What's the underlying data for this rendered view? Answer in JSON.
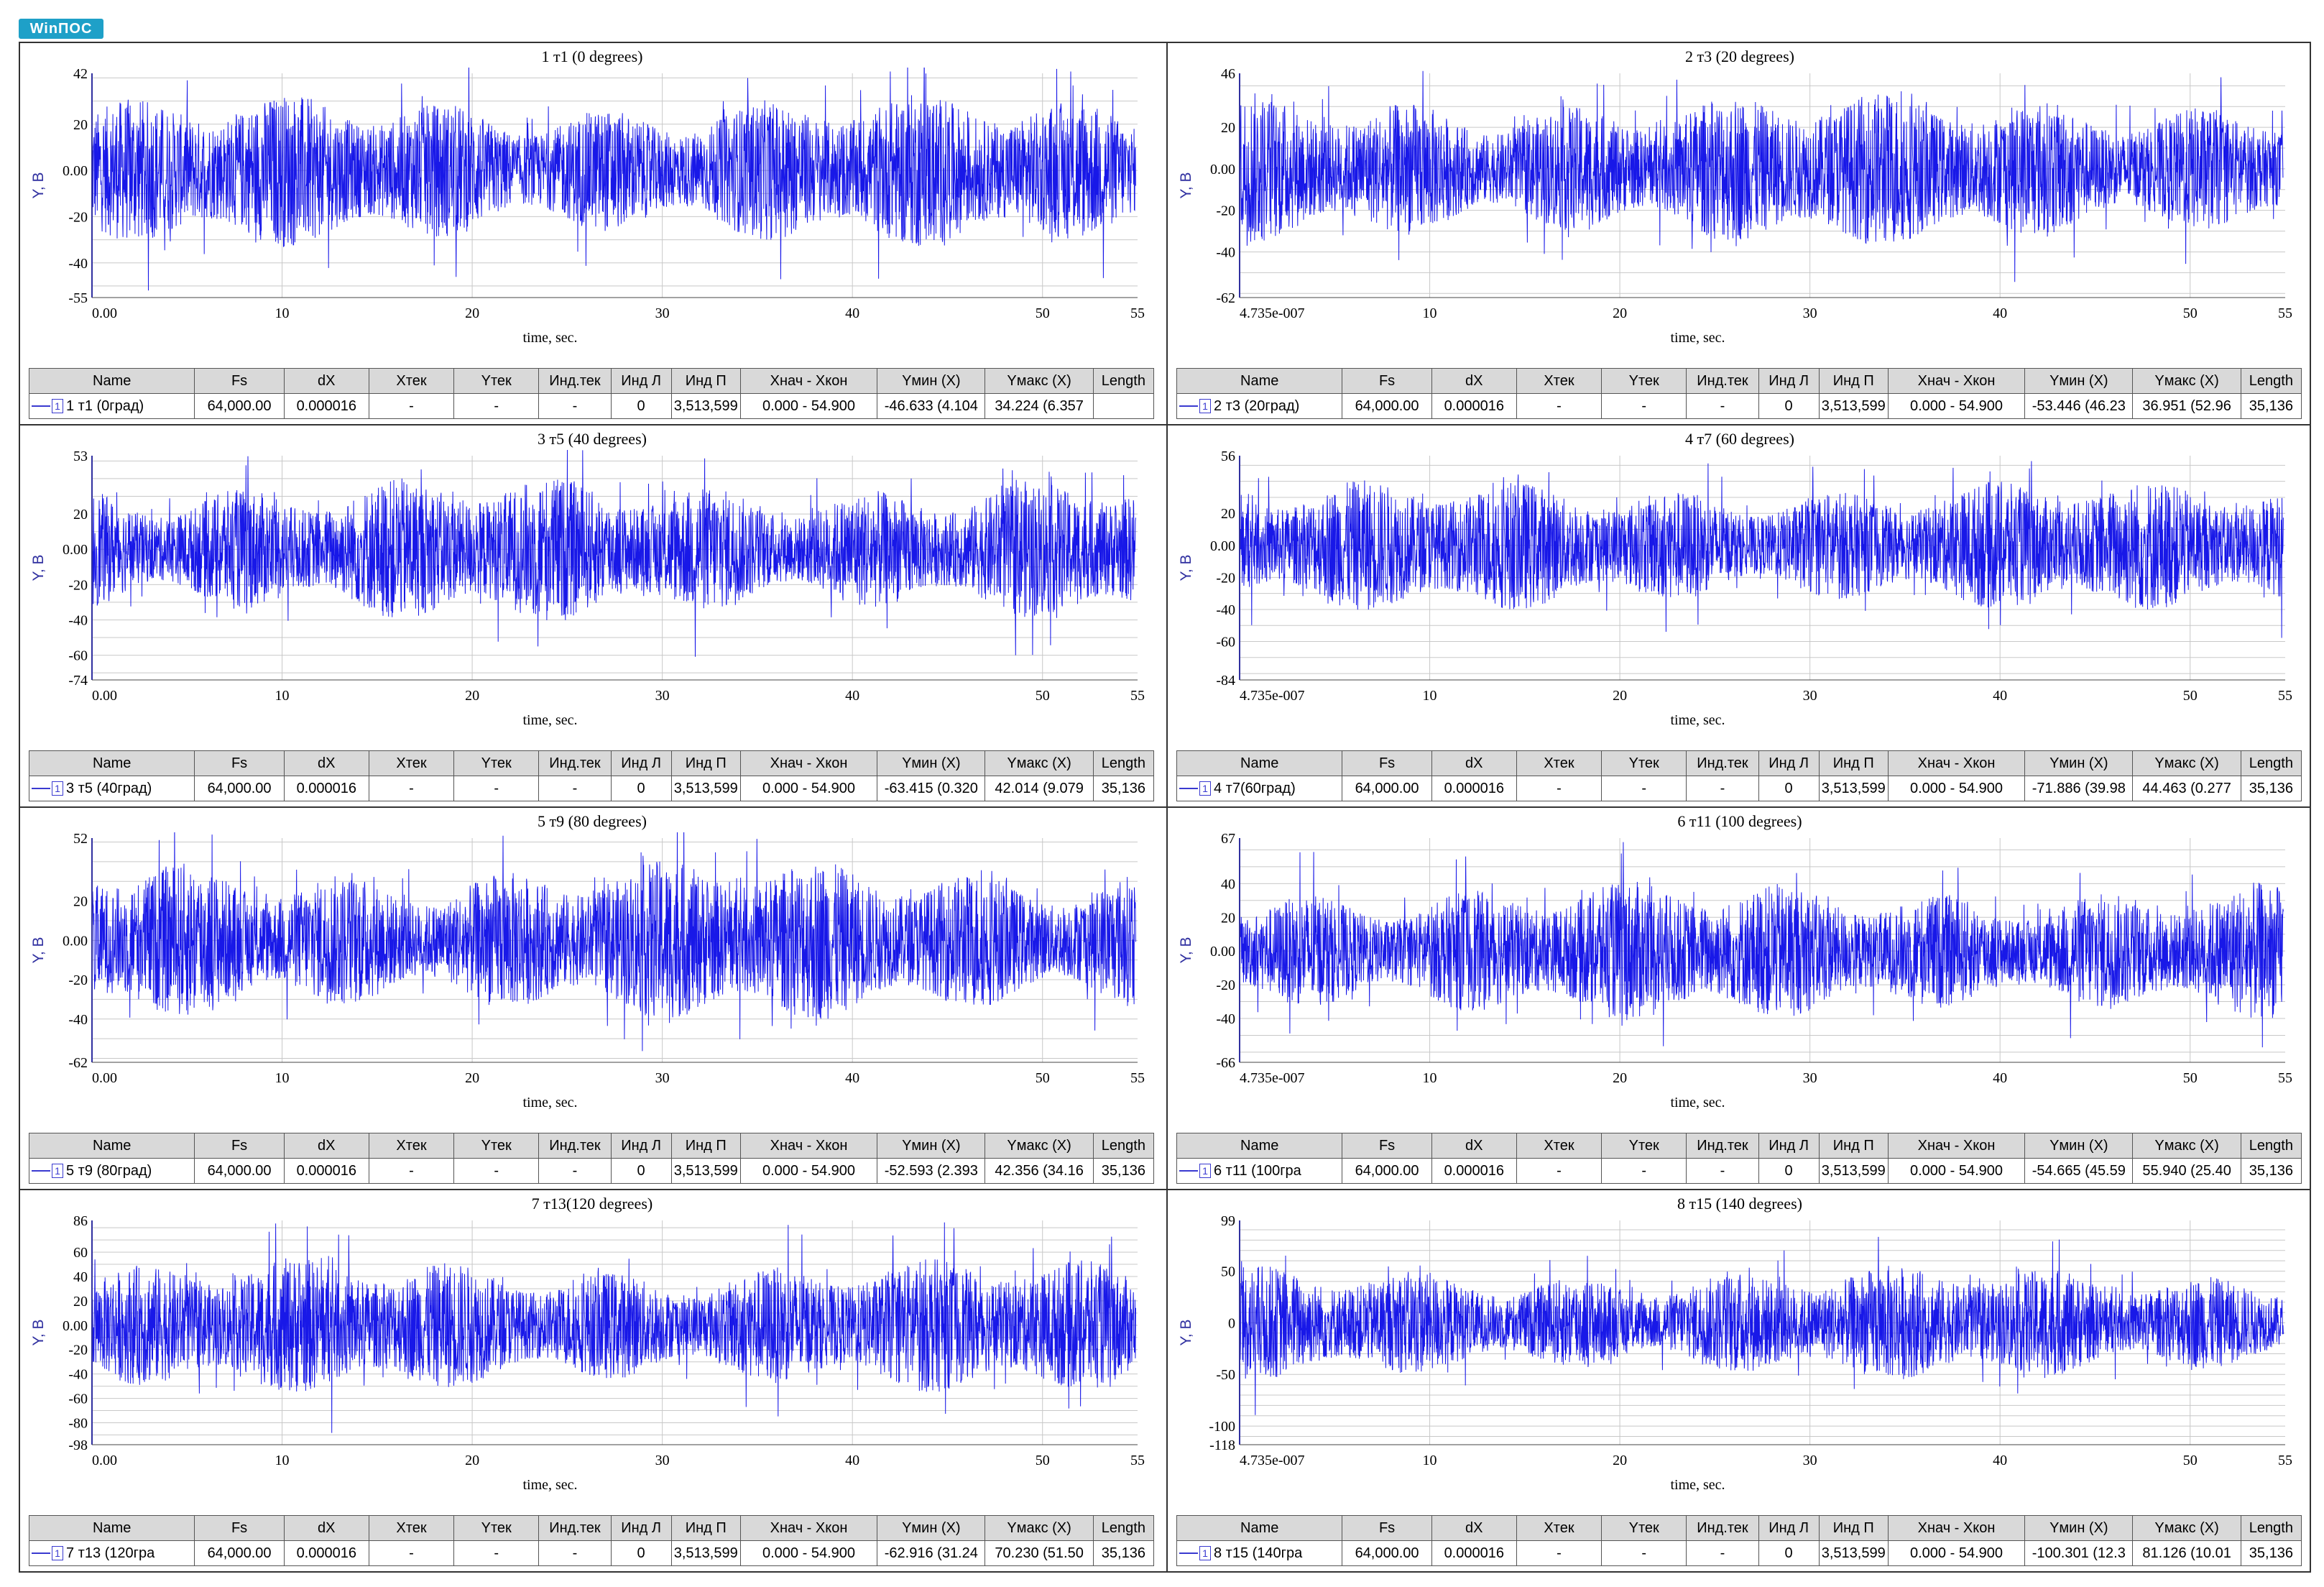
{
  "app": {
    "logo_text": "WinПОС"
  },
  "colors": {
    "signal": "#1818e8",
    "grid": "#c8c8c8",
    "axis": "#3030a0"
  },
  "table_headers": [
    "Name",
    "Fs",
    "dX",
    "Xтек",
    "Yтек",
    "Инд.тек",
    "Инд Л",
    "Инд П",
    "Xнач - Xкон",
    "Yмин (X)",
    "Yмакс (X)",
    "Length"
  ],
  "panels": [
    {
      "title": "1 т1 (0 degrees)",
      "ylabel": "Y, B",
      "xlabel": "time, sec.",
      "yticks": [
        "42",
        "20",
        "0.00",
        "-20",
        "-40",
        "-55"
      ],
      "ymax": 42,
      "ymin": -55,
      "band": 24,
      "xticks": [
        "0.00",
        "10",
        "20",
        "30",
        "40",
        "50",
        "55"
      ],
      "row": {
        "name": "1 т1 (0град)",
        "fs": "64,000.00",
        "dx": "0.000016",
        "xtek": "-",
        "ytek": "-",
        "indtek": "-",
        "indl": "0",
        "indp": "3,513,599",
        "xrange": "0.000 - 54.900",
        "ymin": "-46.633 (4.104",
        "ymax": "34.224 (6.357",
        "length": ""
      }
    },
    {
      "title": "2 т3 (20 degrees)",
      "ylabel": "Y, B",
      "xlabel": "time, sec.",
      "yticks": [
        "46",
        "20",
        "0.00",
        "-20",
        "-40",
        "-62"
      ],
      "ymax": 46,
      "ymin": -62,
      "band": 27,
      "xticks": [
        "4.735e-007",
        "10",
        "20",
        "30",
        "40",
        "50",
        "55"
      ],
      "row": {
        "name": "2 т3 (20град)",
        "fs": "64,000.00",
        "dx": "0.000016",
        "xtek": "-",
        "ytek": "-",
        "indtek": "-",
        "indl": "0",
        "indp": "3,513,599",
        "xrange": "0.000 - 54.900",
        "ymin": "-53.446 (46.23",
        "ymax": "36.951 (52.96",
        "length": "35,136"
      }
    },
    {
      "title": "3 т5 (40 degrees)",
      "ylabel": "Y, B",
      "xlabel": "time, sec.",
      "yticks": [
        "53",
        "20",
        "0.00",
        "-20",
        "-40",
        "-60",
        "-74"
      ],
      "ymax": 53,
      "ymin": -74,
      "band": 30,
      "xticks": [
        "0.00",
        "10",
        "20",
        "30",
        "40",
        "50",
        "55"
      ],
      "row": {
        "name": "3 т5 (40град)",
        "fs": "64,000.00",
        "dx": "0.000016",
        "xtek": "-",
        "ytek": "-",
        "indtek": "-",
        "indl": "0",
        "indp": "3,513,599",
        "xrange": "0.000 - 54.900",
        "ymin": "-63.415 (0.320",
        "ymax": "42.014 (9.079",
        "length": "35,136"
      }
    },
    {
      "title": "4 т7 (60 degrees)",
      "ylabel": "Y, B",
      "xlabel": "time, sec.",
      "yticks": [
        "56",
        "20",
        "0.00",
        "-20",
        "-40",
        "-60",
        "-84"
      ],
      "ymax": 56,
      "ymin": -84,
      "band": 30,
      "xticks": [
        "4.735e-007",
        "10",
        "20",
        "30",
        "40",
        "50",
        "55"
      ],
      "row": {
        "name": "4 т7(60град)",
        "fs": "64,000.00",
        "dx": "0.000016",
        "xtek": "-",
        "ytek": "-",
        "indtek": "-",
        "indl": "0",
        "indp": "3,513,599",
        "xrange": "0.000 - 54.900",
        "ymin": "-71.886 (39.98",
        "ymax": "44.463 (0.277",
        "length": "35,136"
      }
    },
    {
      "title": "5 т9 (80 degrees)",
      "ylabel": "Y, B",
      "xlabel": "time, sec.",
      "yticks": [
        "52",
        "20",
        "0.00",
        "-20",
        "-40",
        "-62"
      ],
      "ymax": 52,
      "ymin": -62,
      "band": 30,
      "xticks": [
        "0.00",
        "10",
        "20",
        "30",
        "40",
        "50",
        "55"
      ],
      "row": {
        "name": "5 т9 (80град)",
        "fs": "64,000.00",
        "dx": "0.000016",
        "xtek": "-",
        "ytek": "-",
        "indtek": "-",
        "indl": "0",
        "indp": "3,513,599",
        "xrange": "0.000 - 54.900",
        "ymin": "-52.593 (2.393",
        "ymax": "42.356 (34.16",
        "length": "35,136"
      }
    },
    {
      "title": "6 т11 (100 degrees)",
      "ylabel": "Y, B",
      "xlabel": "time, sec.",
      "yticks": [
        "67",
        "40",
        "20",
        "0.00",
        "-20",
        "-40",
        "-66"
      ],
      "ymax": 67,
      "ymin": -66,
      "band": 30,
      "xticks": [
        "4.735e-007",
        "10",
        "20",
        "30",
        "40",
        "50",
        "55"
      ],
      "row": {
        "name": "6 т11 (100гра",
        "fs": "64,000.00",
        "dx": "0.000016",
        "xtek": "-",
        "ytek": "-",
        "indtek": "-",
        "indl": "0",
        "indp": "3,513,599",
        "xrange": "0.000 - 54.900",
        "ymin": "-54.665 (45.59",
        "ymax": "55.940 (25.40",
        "length": "35,136"
      }
    },
    {
      "title": "7 т13(120 degrees)",
      "ylabel": "Y, B",
      "xlabel": "time, sec.",
      "yticks": [
        "86",
        "60",
        "40",
        "20",
        "0.00",
        "-20",
        "-40",
        "-60",
        "-80",
        "-98"
      ],
      "ymax": 86,
      "ymin": -98,
      "band": 40,
      "xticks": [
        "0.00",
        "10",
        "20",
        "30",
        "40",
        "50",
        "55"
      ],
      "row": {
        "name": "7 т13 (120гра",
        "fs": "64,000.00",
        "dx": "0.000016",
        "xtek": "-",
        "ytek": "-",
        "indtek": "-",
        "indl": "0",
        "indp": "3,513,599",
        "xrange": "0.000 - 54.900",
        "ymin": "-62.916 (31.24",
        "ymax": "70.230 (51.50",
        "length": "35,136"
      }
    },
    {
      "title": "8 т15 (140 degrees)",
      "ylabel": "Y, B",
      "xlabel": "time, sec.",
      "yticks": [
        "99",
        "50",
        "0",
        "-50",
        "-100",
        "-118"
      ],
      "ymax": 99,
      "ymin": -118,
      "band": 40,
      "xticks": [
        "4.735e-007",
        "10",
        "20",
        "30",
        "40",
        "50",
        "55"
      ],
      "row": {
        "name": "8 т15 (140гра",
        "fs": "64,000.00",
        "dx": "0.000016",
        "xtek": "-",
        "ytek": "-",
        "indtek": "-",
        "indl": "0",
        "indp": "3,513,599",
        "xrange": "0.000 - 54.900",
        "ymin": "-100.301 (12.3",
        "ymax": "81.126 (10.01",
        "length": "35,136"
      }
    }
  ]
}
